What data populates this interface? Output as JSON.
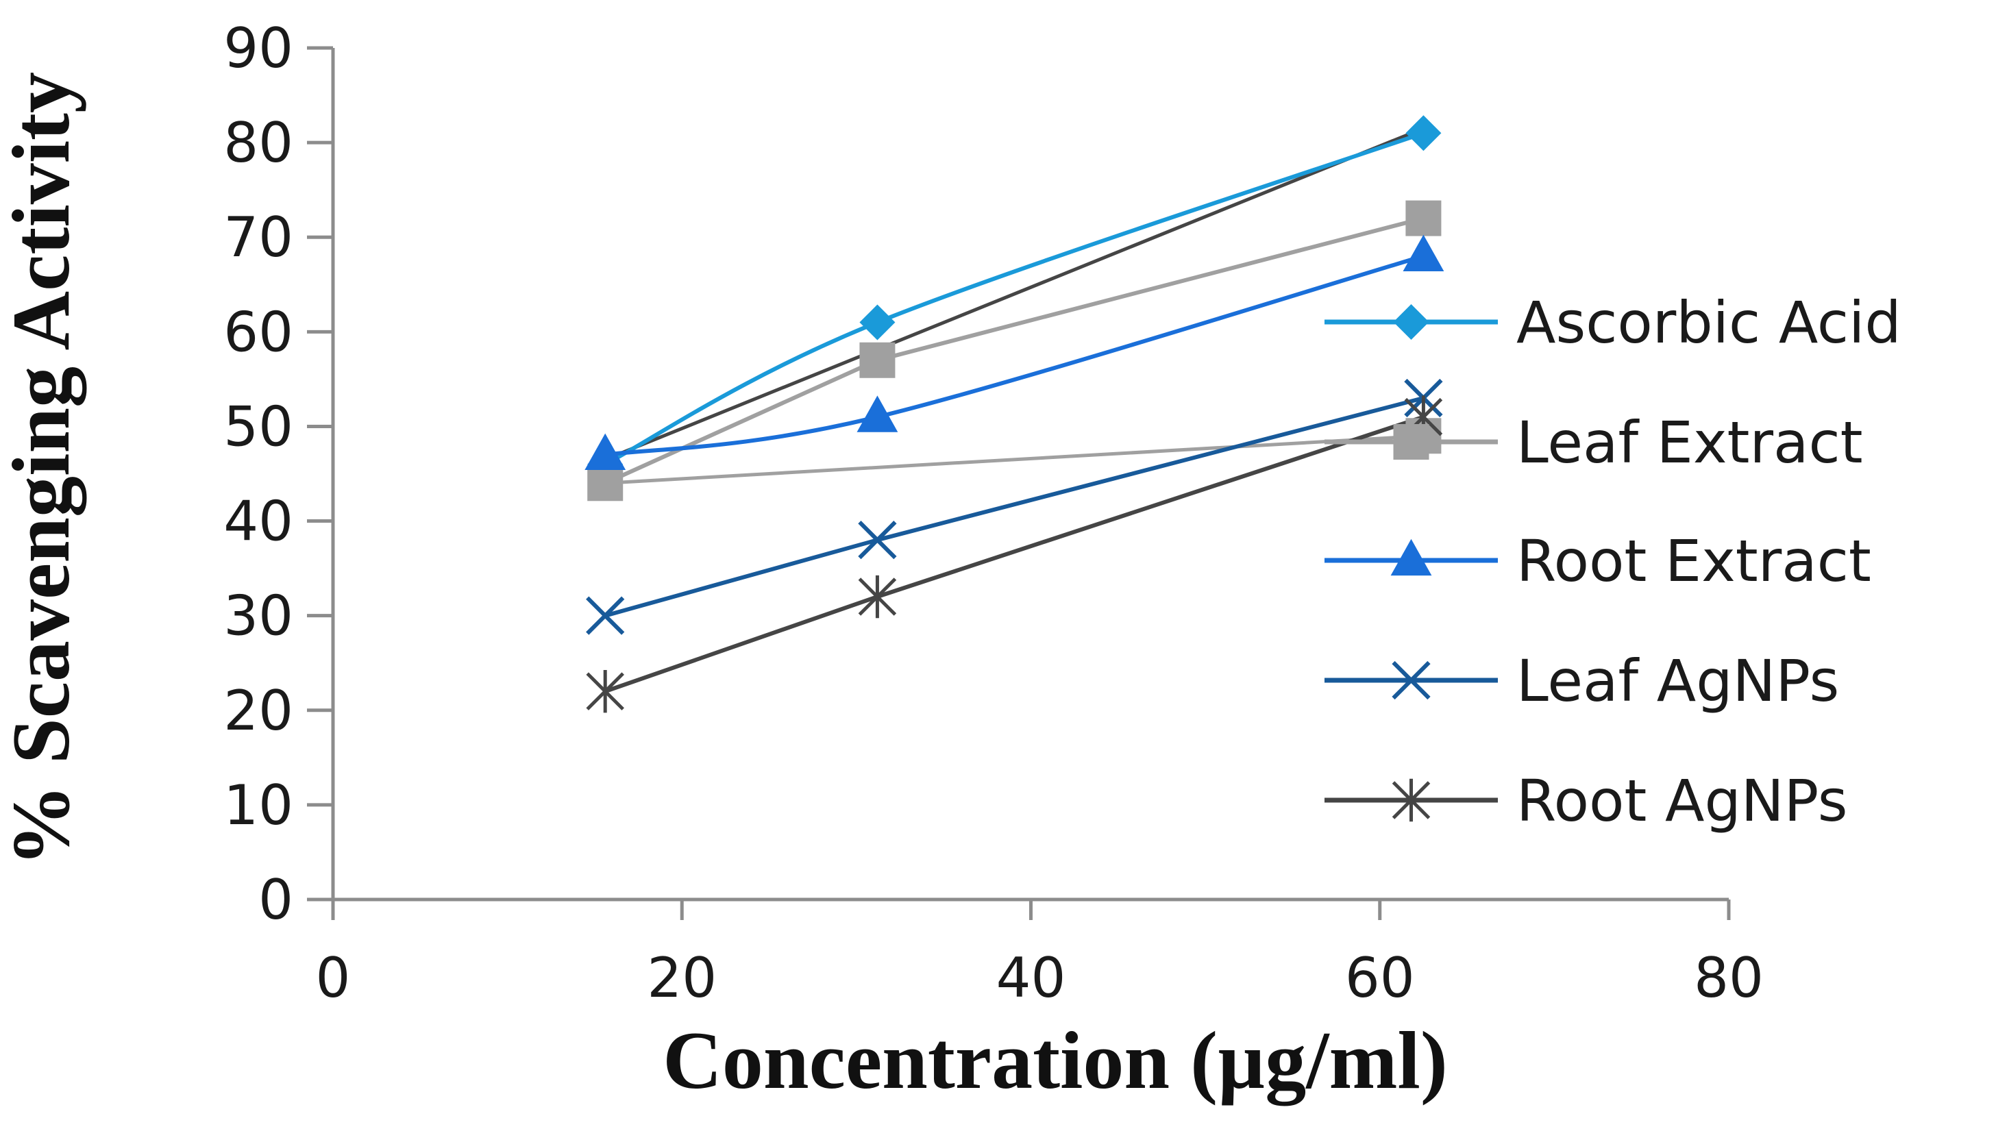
{
  "chart_data": {
    "type": "line",
    "title": "",
    "xlabel": "Concentration (µg/ml)",
    "ylabel": "% Scavenging Activity",
    "xlim": [
      0,
      80
    ],
    "ylim": [
      0,
      90
    ],
    "xticks": [
      0,
      20,
      40,
      60,
      80
    ],
    "yticks": [
      0,
      10,
      20,
      30,
      40,
      50,
      60,
      70,
      80,
      90
    ],
    "xtick_labels": [
      "0",
      "20",
      "40",
      "60",
      "80"
    ],
    "ytick_labels": [
      "0",
      "10",
      "20",
      "30",
      "40",
      "50",
      "60",
      "70",
      "80",
      "90"
    ],
    "grid": false,
    "legend_position": "right",
    "series": [
      {
        "name": "Ascorbic Acid",
        "color": "#1a9ad9",
        "marker": "diamond",
        "smooth": true,
        "x": [
          15.6,
          31.2,
          62.5
        ],
        "values": [
          46,
          61,
          81
        ]
      },
      {
        "name": "Leaf Extract",
        "color": "#a0a0a0",
        "marker": "square",
        "smooth": false,
        "x": [
          15.6,
          31.2,
          62.5
        ],
        "values": [
          44,
          57,
          72
        ]
      },
      {
        "name": "Root Extract",
        "color": "#1a6fd9",
        "marker": "triangle",
        "smooth": true,
        "x": [
          15.6,
          31.2,
          62.5
        ],
        "values": [
          47,
          51,
          68
        ]
      },
      {
        "name": "Leaf AgNPs",
        "color": "#185a9a",
        "marker": "x",
        "smooth": false,
        "x": [
          15.6,
          31.2,
          62.5
        ],
        "values": [
          30,
          38,
          53
        ]
      },
      {
        "name": "Root AgNPs",
        "color": "#454545",
        "marker": "star",
        "smooth": false,
        "x": [
          15.6,
          31.2,
          62.5
        ],
        "values": [
          22,
          32,
          51
        ]
      }
    ],
    "extra_lines": [
      {
        "name": "trend-line",
        "color": "#454545",
        "x": [
          15.6,
          62.5
        ],
        "values": [
          46.5,
          81.5
        ]
      },
      {
        "name": "leaf-extract-tail",
        "color": "#a0a0a0",
        "marker": "square",
        "x": [
          15.6,
          62.5
        ],
        "values": [
          44,
          49
        ]
      }
    ]
  }
}
